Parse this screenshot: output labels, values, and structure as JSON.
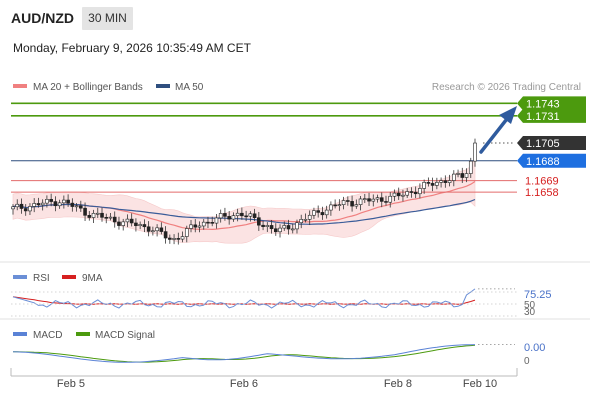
{
  "header": {
    "symbol": "AUD/NZD",
    "timeframe": "30 MIN",
    "datetime": "Monday, February 9, 2026 10:35:49 AM CET"
  },
  "legend": {
    "ma20_label": "MA 20 + Bollinger Bands",
    "ma50_label": "MA 50",
    "credit": "Research © 2026 Trading Central"
  },
  "colors": {
    "resistance": "#4c9a0e",
    "support": "#e36b6b",
    "pivot": "#2f4f7f",
    "current": "#333333",
    "pivot_label": "#1e6fe0",
    "ma20": "#f08080",
    "ma50": "#3a5c99",
    "band_fill": "#fbe3e3",
    "arrow": "#2f5b9e",
    "rsi": "#6b8fd6",
    "rsi_ma": "#d62020",
    "macd": "#5a82d6",
    "macd_signal": "#4c9a0e"
  },
  "chart_data": [
    {
      "type": "candlestick",
      "title": "",
      "ylim": [
        1.1595,
        1.175
      ],
      "x_ticks": [
        "Feb 5",
        "Feb 6",
        "Feb 8",
        "Feb 10"
      ],
      "levels": [
        {
          "name": "resistance-2",
          "value": 1.1743,
          "label": "1.1743"
        },
        {
          "name": "resistance-1",
          "value": 1.1731,
          "label": "1.1731"
        },
        {
          "name": "current-price",
          "value": 1.1705,
          "label": "1.1705"
        },
        {
          "name": "pivot",
          "value": 1.1688,
          "label": "1.1688"
        },
        {
          "name": "support-1",
          "value": 1.1669,
          "label": "1.1669"
        },
        {
          "name": "support-2",
          "value": 1.1658,
          "label": "1.1658"
        }
      ],
      "series": [
        {
          "name": "MA 20 + Bollinger Bands"
        },
        {
          "name": "MA 50"
        }
      ]
    },
    {
      "type": "line",
      "title": "RSI",
      "ylim": [
        30,
        80
      ],
      "tick_labels": [
        "75.25",
        "50",
        "30"
      ],
      "series": [
        {
          "name": "RSI"
        },
        {
          "name": "9MA"
        }
      ]
    },
    {
      "type": "line",
      "title": "MACD",
      "ylim": [
        -0.0015,
        0.0015
      ],
      "tick_labels": [
        "0.00",
        "0"
      ],
      "series": [
        {
          "name": "MACD"
        },
        {
          "name": "MACD Signal"
        }
      ]
    }
  ]
}
